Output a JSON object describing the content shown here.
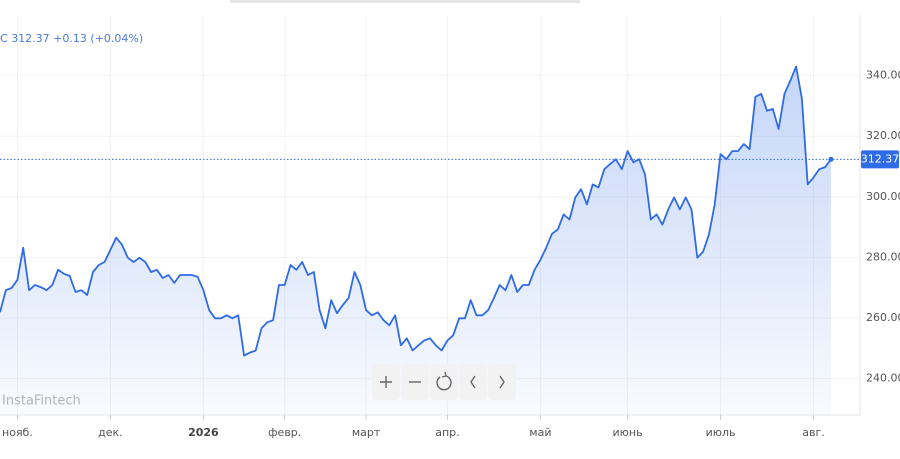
{
  "chart_data": {
    "type": "area",
    "header": {
      "symbol": "C",
      "change": "+0.13",
      "change_pct": "(+0.04%)"
    },
    "watermark": "InstaFintech",
    "color": "#2f6be6",
    "values": [
      261.9,
      269.2,
      269.9,
      272.6,
      283.2,
      269.2,
      270.9,
      270.2,
      269.2,
      270.9,
      275.9,
      274.6,
      273.9,
      268.6,
      269.2,
      267.6,
      275.2,
      277.5,
      278.5,
      282.5,
      286.5,
      284.2,
      279.9,
      278.5,
      279.9,
      278.5,
      275.2,
      275.9,
      273.2,
      274.2,
      271.6,
      274.2,
      274.2,
      274.2,
      273.6,
      269.2,
      262.6,
      259.9,
      259.9,
      260.9,
      259.9,
      260.9,
      247.6,
      248.6,
      249.3,
      256.6,
      258.6,
      259.3,
      270.9,
      270.9,
      277.5,
      275.9,
      278.5,
      274.2,
      275.2,
      262.6,
      256.6,
      265.9,
      261.6,
      264.3,
      266.6,
      275.2,
      270.9,
      262.6,
      260.9,
      261.9,
      259.3,
      257.6,
      260.9,
      251.0,
      253.3,
      249.3,
      251.0,
      252.6,
      253.3,
      251.0,
      249.3,
      252.6,
      254.3,
      259.9,
      259.9,
      265.9,
      260.9,
      260.9,
      262.6,
      266.6,
      270.9,
      269.2,
      274.2,
      268.6,
      270.9,
      270.9,
      275.9,
      279.2,
      283.2,
      287.8,
      289.2,
      294.2,
      292.5,
      299.8,
      302.5,
      297.5,
      304.1,
      303.1,
      309.1,
      310.8,
      312.4,
      309.1,
      315.1,
      311.4,
      312.4,
      307.4,
      292.5,
      294.2,
      290.8,
      295.8,
      299.8,
      295.8,
      299.8,
      295.8,
      279.9,
      281.9,
      287.5,
      297.5,
      314.1,
      312.4,
      315.1,
      315.1,
      317.4,
      315.7,
      333.0,
      334.0,
      328.4,
      329.0,
      322.4,
      334.0,
      338.3,
      343.0,
      332.4,
      304.1,
      306.4,
      309.1,
      309.8,
      312.37
    ],
    "xlim": [
      0,
      148
    ],
    "xticks": [
      {
        "value": 3,
        "label": "нояб."
      },
      {
        "value": 19,
        "label": "дек."
      },
      {
        "value": 35,
        "label": "2026"
      },
      {
        "value": 49,
        "label": "февр."
      },
      {
        "value": 63,
        "label": "март"
      },
      {
        "value": 77,
        "label": "апр."
      },
      {
        "value": 93,
        "label": "май"
      },
      {
        "value": 108,
        "label": "июнь"
      },
      {
        "value": 124,
        "label": "июль"
      },
      {
        "value": 140,
        "label": "авг."
      }
    ],
    "ylim": [
      228,
      360
    ],
    "yticks": [
      {
        "value": 240,
        "label": "240.00"
      },
      {
        "value": 260,
        "label": "260.00"
      },
      {
        "value": 280,
        "label": "280.00"
      },
      {
        "value": 300,
        "label": "300.00"
      },
      {
        "value": 320,
        "label": "320.00"
      },
      {
        "value": 340,
        "label": "340.00"
      }
    ],
    "grid": true
  }
}
